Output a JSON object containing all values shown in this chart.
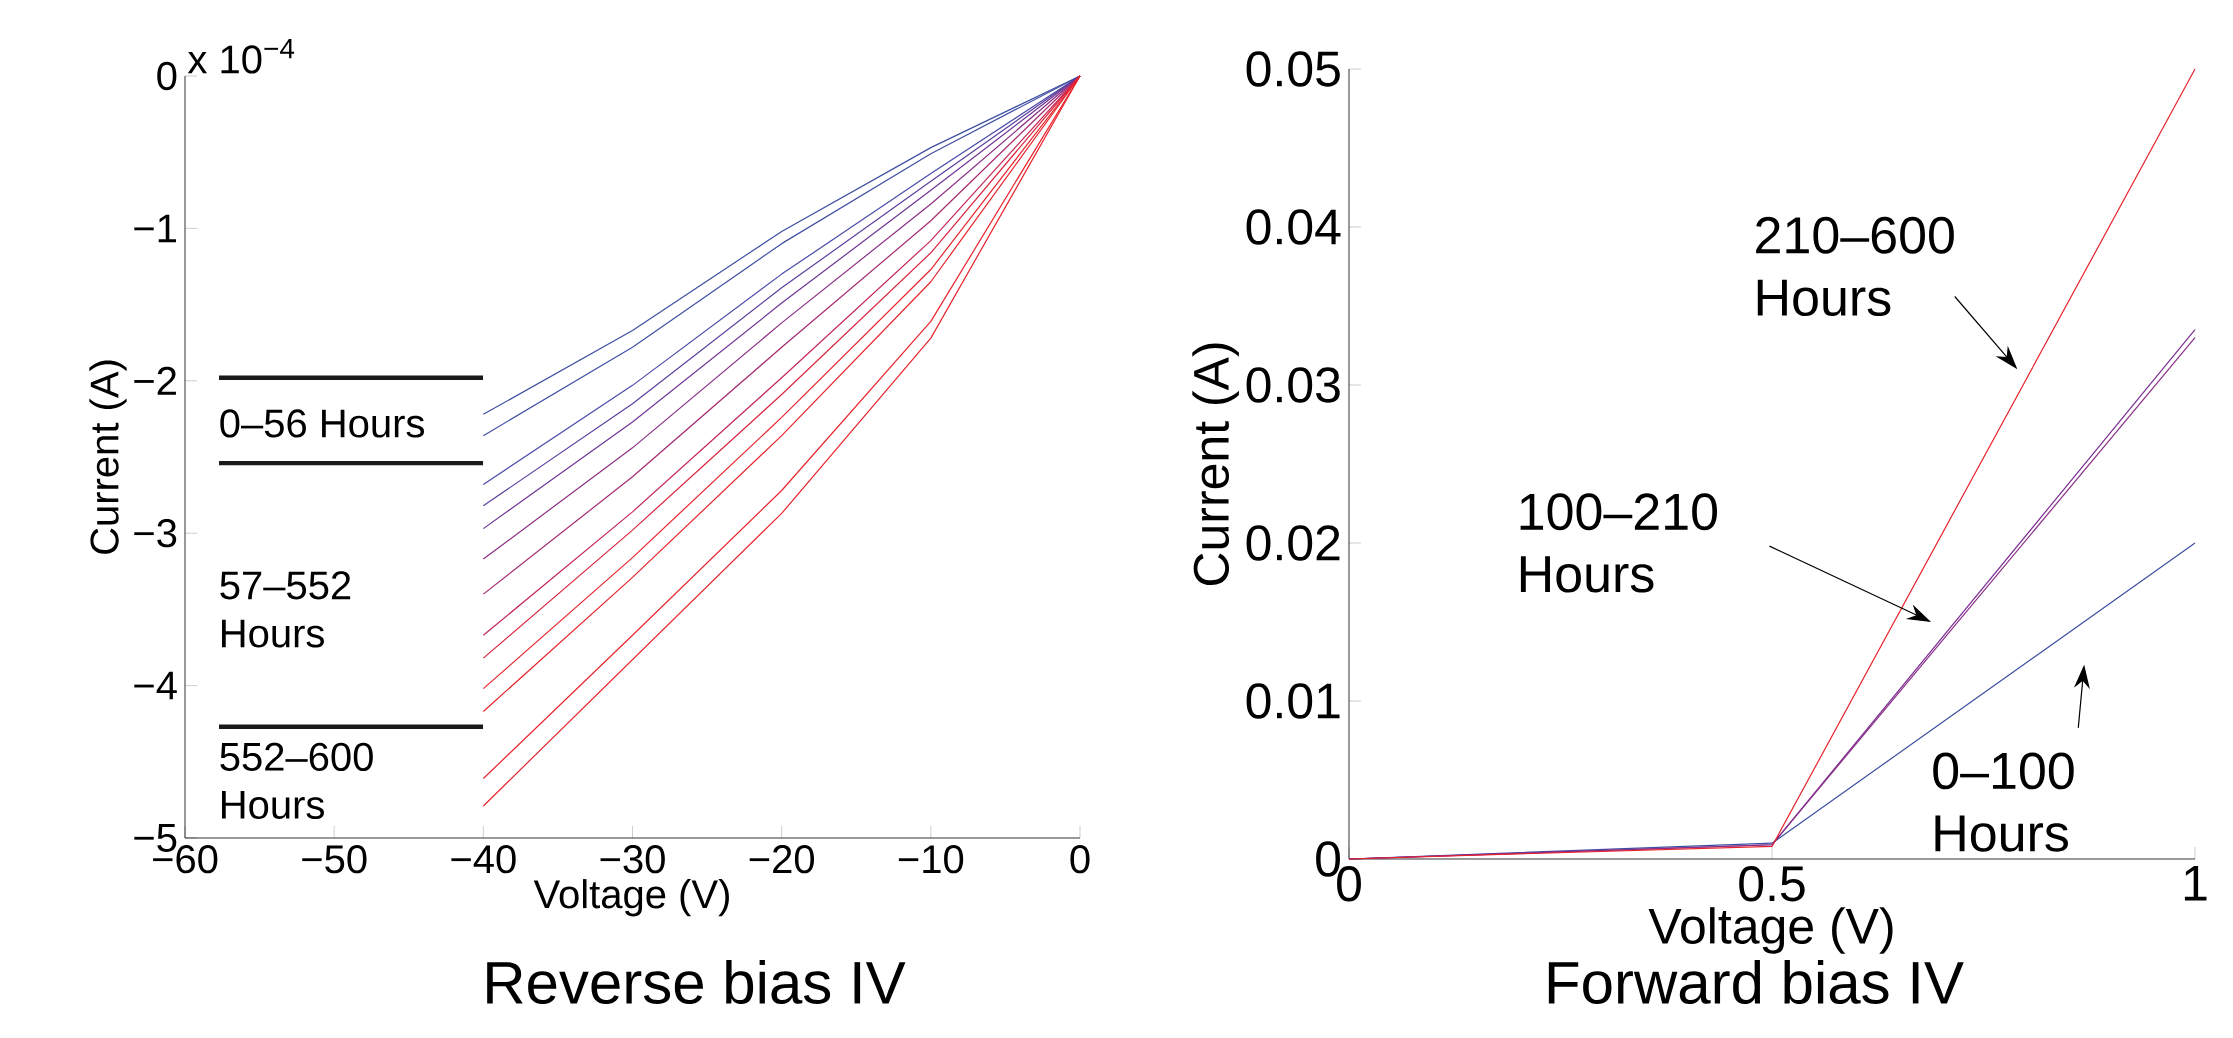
{
  "chart_data": [
    {
      "type": "line",
      "title": "Reverse bias IV",
      "xlabel": "Voltage (V)",
      "ylabel": "Current (A)",
      "annotations": [
        "x 10$^{−4}$",
        "0–56 Hours",
        "57–552 Hours",
        "552–600 Hours"
      ],
      "x": [
        -40,
        -30,
        -20,
        -10,
        0
      ],
      "xlim": [
        -60,
        0
      ],
      "ylim": [
        -5,
        0
      ],
      "xticks": [
        {
          "value": -60,
          "label": "−60"
        },
        {
          "value": -50,
          "label": "−50"
        },
        {
          "value": -40,
          "label": "−40"
        },
        {
          "value": -30,
          "label": "−30"
        },
        {
          "value": -20,
          "label": "−20"
        },
        {
          "value": -10,
          "label": "−10"
        },
        0
      ],
      "yticks": [
        {
          "value": -5,
          "label": "−5"
        },
        {
          "value": -4,
          "label": "−4"
        },
        {
          "value": -3,
          "label": "−3"
        },
        {
          "value": -2,
          "label": "−2"
        },
        {
          "value": -1,
          "label": "−1"
        },
        0
      ],
      "series": [
        {
          "color": "#3d4fa2",
          "values": [
            -2.22,
            -1.67,
            -1.02,
            -0.47,
            0
          ]
        },
        {
          "color": "#4150a3",
          "values": [
            -2.36,
            -1.78,
            -1.1,
            -0.51,
            0
          ]
        },
        {
          "color": "#4a4aa8",
          "values": [
            -2.68,
            -2.03,
            -1.3,
            -0.64,
            0
          ]
        },
        {
          "color": "#5a3f9e",
          "values": [
            -2.82,
            -2.15,
            -1.39,
            -0.69,
            0
          ]
        },
        {
          "color": "#6e3494",
          "values": [
            -2.97,
            -2.27,
            -1.49,
            -0.75,
            0
          ]
        },
        {
          "color": "#8a2f85",
          "values": [
            -3.17,
            -2.44,
            -1.62,
            -0.84,
            0
          ]
        },
        {
          "color": "#a52a6e",
          "values": [
            -3.4,
            -2.63,
            -1.78,
            -0.95,
            0
          ]
        },
        {
          "color": "#c42655",
          "values": [
            -3.67,
            -2.86,
            -1.98,
            -1.08,
            0
          ]
        },
        {
          "color": "#d9233f",
          "values": [
            -3.82,
            -2.98,
            -2.09,
            -1.16,
            0
          ]
        },
        {
          "color": "#e8232c",
          "values": [
            -4.02,
            -3.16,
            -2.24,
            -1.27,
            0
          ]
        },
        {
          "color": "#e8232c",
          "values": [
            -4.17,
            -3.29,
            -2.36,
            -1.35,
            0
          ]
        },
        {
          "color": "#e8232c",
          "values": [
            -4.61,
            -3.67,
            -2.72,
            -1.61,
            0
          ]
        },
        {
          "color": "#e8232c",
          "values": [
            -4.79,
            -3.83,
            -2.87,
            -1.72,
            0
          ]
        }
      ]
    },
    {
      "type": "line",
      "title": "Forward bias IV",
      "xlabel": "Voltage (V)",
      "ylabel": "Current (A)",
      "annotations": [
        "210–600 Hours",
        "100–210 Hours",
        "0–100 Hours"
      ],
      "x": [
        0,
        0.5,
        1
      ],
      "xlim": [
        0,
        1
      ],
      "ylim": [
        0,
        0.05
      ],
      "xticks": [
        0,
        0.5,
        1
      ],
      "yticks": [
        0,
        0.01,
        0.02,
        0.03,
        0.04,
        0.05
      ],
      "series": [
        {
          "color": "#3d4fa2",
          "values": [
            0,
            0.001,
            0.02
          ]
        },
        {
          "color": "#7a2f93",
          "values": [
            0,
            0.0009,
            0.0335
          ]
        },
        {
          "color": "#8a2d86",
          "values": [
            0,
            0.0009,
            0.033
          ]
        },
        {
          "color": "#e8232c",
          "values": [
            0,
            0.0008,
            0.05
          ]
        }
      ]
    }
  ]
}
